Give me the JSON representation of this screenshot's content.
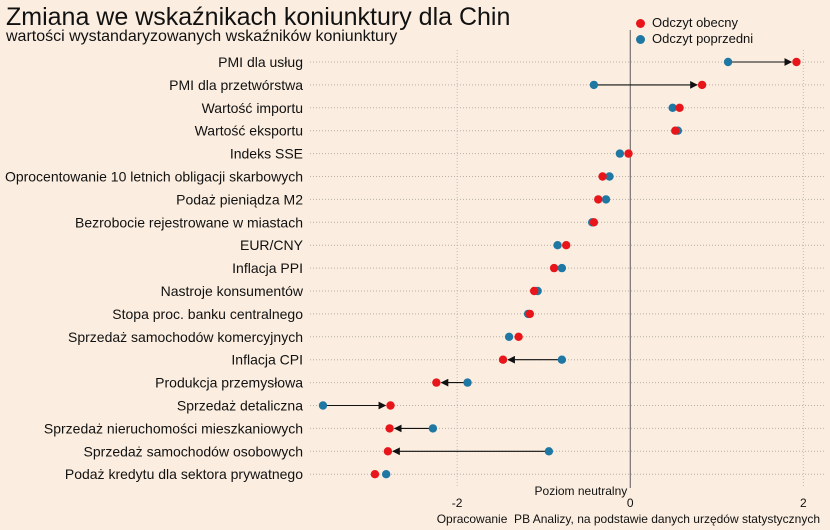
{
  "chart_data": {
    "type": "dot-arrow",
    "title": "Zmiana we wskaźnikach koniunktury dla Chin",
    "subtitle": "wartości wystandaryzowanych wskaźników koniunktury",
    "xlim": [
      -3.7,
      2.25
    ],
    "x_ticks": [
      -2,
      0,
      2
    ],
    "x_tick_labels": [
      "-2",
      "0",
      "2"
    ],
    "reference_line": {
      "x": 0,
      "label": "Poziom neutralny"
    },
    "grid": "dotted horizontal + vertical at ticks",
    "legend_position": "top-right",
    "colors": {
      "current": "#e8161b",
      "previous": "#1f77a4"
    },
    "series": [
      {
        "name": "Odczyt obecny",
        "key": "current"
      },
      {
        "name": "Odczyt poprzedni",
        "key": "previous"
      }
    ],
    "categories": [
      "PMI dla usług",
      "PMI dla przetwórstwa",
      "Wartość importu",
      "Wartość eksportu",
      "Indeks SSE",
      "Oprocentowanie 10 letnich obligacji skarbowych",
      "Podaż pieniądza M2",
      "Bezrobocie rejestrowane w miastach",
      "EUR/CNY",
      "Inflacja PPI",
      "Nastroje konsumentów",
      "Stopa proc. banku centralnego",
      "Sprzedaż samochodów komercyjnych",
      "Inflacja CPI",
      "Produkcja przemysłowa",
      "Sprzedaż detaliczna",
      "Sprzedaż nieruchomości mieszkaniowych",
      "Sprzedaż samochodów osobowych",
      "Podaż kredytu dla sektora prywatnego"
    ],
    "current": [
      1.92,
      0.83,
      0.57,
      0.52,
      -0.02,
      -0.32,
      -0.37,
      -0.42,
      -0.74,
      -0.88,
      -1.11,
      -1.16,
      -1.29,
      -1.47,
      -2.24,
      -2.77,
      -2.78,
      -2.8,
      -2.95
    ],
    "previous": [
      1.13,
      -0.42,
      0.49,
      0.55,
      -0.12,
      -0.24,
      -0.28,
      -0.44,
      -0.84,
      -0.79,
      -1.07,
      -1.18,
      -1.4,
      -0.79,
      -1.88,
      -3.55,
      -2.28,
      -0.94,
      -2.82
    ],
    "arrows": [
      true,
      true,
      false,
      false,
      false,
      false,
      false,
      false,
      false,
      false,
      false,
      false,
      false,
      true,
      true,
      true,
      true,
      true,
      false
    ]
  },
  "caption": "Opracowanie  PB Analizy, na podstawie danych urzędów statystycznych"
}
